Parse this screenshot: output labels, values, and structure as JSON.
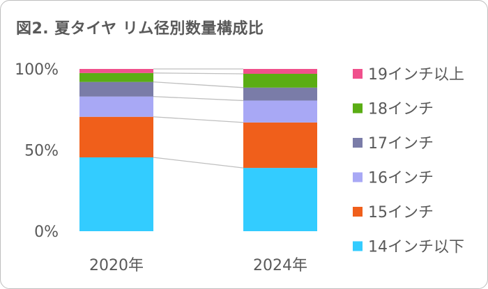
{
  "chart_data": {
    "type": "bar",
    "stacked": true,
    "normalized": true,
    "title": "図2. 夏タイヤ リム径別数量構成比",
    "categories": [
      "2020年",
      "2024年"
    ],
    "yticks": [
      "0%",
      "50%",
      "100%"
    ],
    "ylim": [
      0,
      100
    ],
    "grid": false,
    "legend_position": "right",
    "series": [
      {
        "name": "14インチ以下",
        "color": "#33ccff",
        "values": [
          45.5,
          39.0
        ]
      },
      {
        "name": "15インチ",
        "color": "#f05f1b",
        "values": [
          25.0,
          28.0
        ]
      },
      {
        "name": "16インチ",
        "color": "#a8a8f5",
        "values": [
          12.5,
          13.5
        ]
      },
      {
        "name": "17インチ",
        "color": "#7a7ca8",
        "values": [
          9.0,
          8.0
        ]
      },
      {
        "name": "18インチ",
        "color": "#5aad14",
        "values": [
          5.5,
          8.5
        ]
      },
      {
        "name": "19インチ以上",
        "color": "#f0508c",
        "values": [
          2.5,
          3.0
        ]
      }
    ]
  }
}
